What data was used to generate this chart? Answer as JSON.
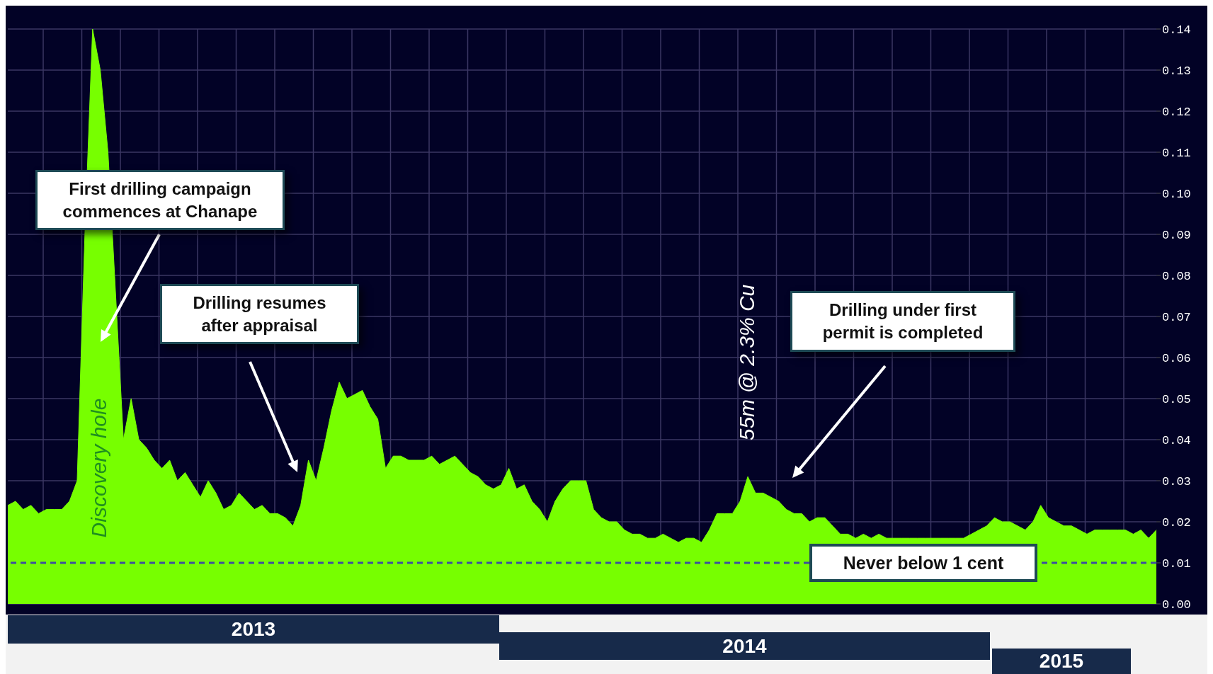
{
  "chart_data": {
    "type": "area",
    "color": "#77ff00",
    "categories": [
      null,
      null,
      null,
      null,
      null,
      null,
      null,
      null,
      null,
      null,
      null,
      null,
      null,
      null,
      null,
      null,
      null,
      null,
      null,
      null,
      null,
      null,
      null,
      null,
      null,
      null,
      null,
      null,
      null,
      null,
      null,
      null,
      null,
      null,
      null,
      null,
      null,
      null,
      null,
      null,
      null,
      null,
      null,
      null,
      null,
      null,
      null,
      null,
      null,
      null,
      null,
      null,
      null,
      null,
      null,
      null,
      null,
      null,
      null,
      null,
      null,
      null,
      null,
      null,
      null,
      null,
      null,
      null,
      null,
      null,
      null,
      null,
      null,
      null,
      null,
      null,
      null,
      null,
      null,
      null,
      null,
      null,
      null,
      null,
      null,
      null,
      null,
      null,
      null,
      null,
      null,
      null,
      null,
      null,
      null,
      null,
      null,
      null,
      null,
      null,
      null,
      null,
      null,
      null,
      null,
      null,
      null,
      null,
      null,
      null,
      null,
      null,
      null,
      null,
      null,
      null,
      null,
      null,
      null,
      null,
      null,
      null,
      null,
      null,
      null,
      null,
      null,
      null,
      null,
      null,
      null,
      null,
      null,
      null,
      null,
      null,
      null,
      null,
      null,
      null,
      null,
      null,
      null,
      null,
      null,
      null,
      null,
      null,
      null,
      null
    ],
    "values": [
      0.024,
      0.025,
      0.023,
      0.024,
      0.022,
      0.023,
      0.023,
      0.023,
      0.025,
      0.03,
      0.09,
      0.14,
      0.13,
      0.11,
      null,
      0.04,
      0.05,
      0.04,
      0.038,
      0.035,
      0.033,
      0.035,
      0.03,
      0.032,
      0.029,
      0.026,
      0.03,
      0.027,
      0.023,
      0.024,
      0.027,
      0.025,
      0.023,
      0.024,
      0.022,
      0.022,
      0.021,
      0.019,
      0.024,
      0.035,
      0.03,
      0.038,
      0.047,
      0.054,
      0.05,
      0.051,
      0.052,
      0.048,
      0.045,
      0.033,
      0.036,
      0.036,
      0.035,
      0.035,
      0.035,
      0.036,
      0.034,
      0.035,
      0.036,
      0.034,
      0.032,
      0.031,
      0.029,
      0.028,
      0.029,
      0.033,
      0.028,
      0.029,
      0.025,
      0.023,
      0.02,
      0.025,
      0.028,
      0.03,
      0.03,
      0.03,
      0.023,
      0.021,
      0.02,
      0.02,
      0.018,
      0.017,
      0.017,
      0.016,
      0.016,
      0.017,
      0.016,
      0.015,
      0.016,
      0.016,
      0.015,
      0.018,
      0.022,
      0.022,
      0.022,
      0.025,
      0.031,
      0.027,
      0.027,
      0.026,
      0.025,
      0.023,
      0.022,
      0.022,
      0.02,
      0.021,
      0.021,
      0.019,
      0.017,
      0.017,
      0.016,
      0.017,
      0.016,
      0.017,
      0.016,
      0.016,
      0.016,
      0.016,
      0.016,
      0.016,
      0.016,
      0.016,
      0.016,
      0.016,
      0.016,
      0.017,
      0.018,
      0.019,
      0.021,
      0.02,
      0.02,
      0.019,
      0.018,
      0.02,
      0.024,
      0.021,
      0.02,
      0.019,
      0.019,
      0.018,
      0.017,
      0.018,
      0.018,
      0.018,
      0.018,
      0.018,
      0.017,
      0.018,
      0.016,
      0.018
    ],
    "ylim": [
      0,
      0.14
    ],
    "yticks": [
      {
        "value": 0,
        "label": "0.00"
      },
      0.01,
      0.02,
      0.03,
      0.04,
      0.05,
      0.06,
      0.07,
      0.08,
      0.09,
      {
        "value": 0.1,
        "label": "0.10"
      },
      0.11,
      0.12,
      0.13,
      0.14
    ],
    "grid": true,
    "ref_lines": [
      {
        "axis": "y",
        "value": 0.01,
        "label": "Never below 1 cent",
        "color": "#3d4f9e",
        "line_style": "dashed"
      }
    ],
    "annotations": [
      "First drilling campaign commences at Chanape",
      "Drilling resumes after appraisal",
      "Drilling under first permit is completed",
      "Discovery hole",
      "55m @ 2.3% Cu",
      "2013",
      "2014",
      "2015"
    ]
  }
}
